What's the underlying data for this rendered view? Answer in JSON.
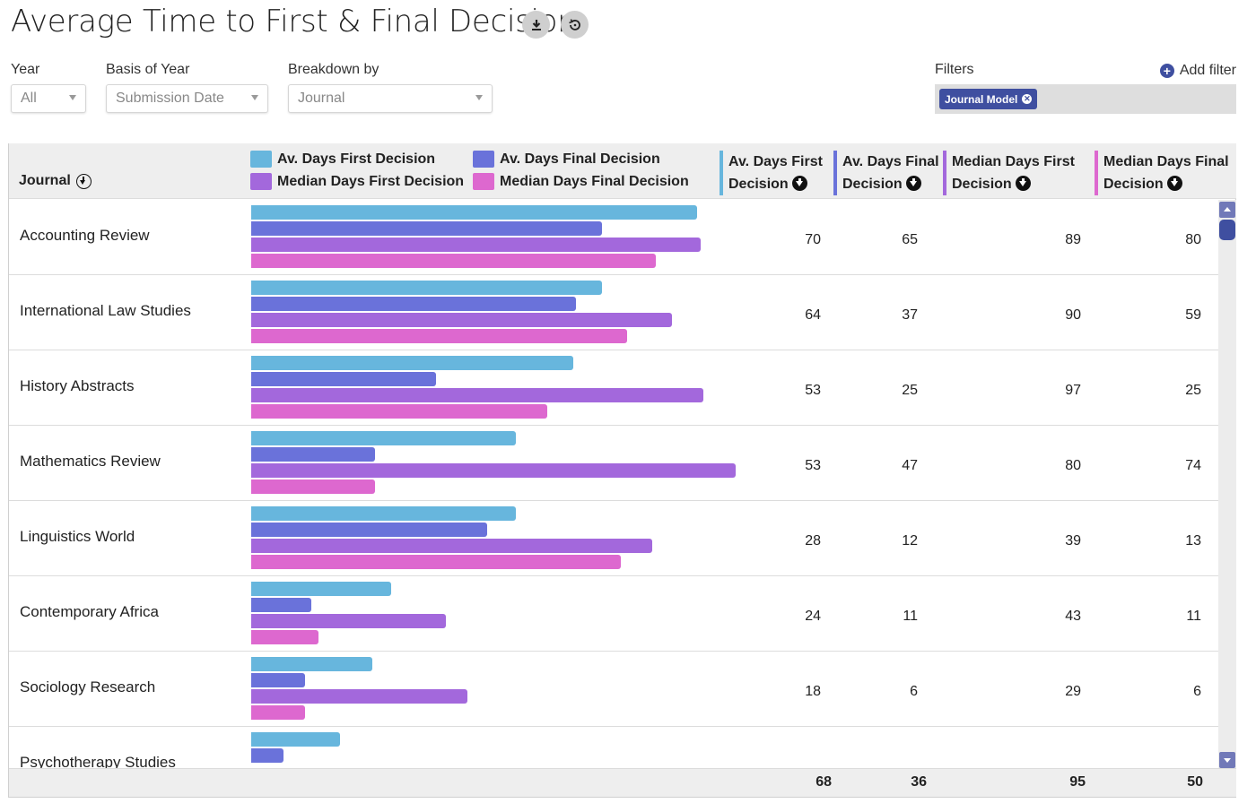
{
  "header": {
    "title": "Average Time to First & Final Decision",
    "download_icon": "download-icon",
    "reset_icon": "reset-icon"
  },
  "controls": {
    "year": {
      "label": "Year",
      "value": "All"
    },
    "basis": {
      "label": "Basis of Year",
      "value": "Submission Date"
    },
    "breakdown": {
      "label": "Breakdown by",
      "value": "Journal"
    }
  },
  "filters": {
    "label": "Filters",
    "add_label": "Add filter",
    "chips": [
      {
        "label": "Journal Model"
      }
    ]
  },
  "colors": {
    "av_first": "#67b6dd",
    "av_final": "#6a72da",
    "median_first": "#a368dc",
    "median_final": "#dd68cf"
  },
  "table": {
    "journal_header": "Journal",
    "columns": [
      {
        "key": "av_first",
        "line1": "Av. Days First",
        "line2": "Decision"
      },
      {
        "key": "av_final",
        "line1": "Av. Days Final",
        "line2": "Decision"
      },
      {
        "key": "median_first",
        "line1": "Median Days First",
        "line2": "Decision"
      },
      {
        "key": "median_final",
        "line1": "Median Days Final",
        "line2": "Decision"
      }
    ],
    "totals": {
      "av_first": "68",
      "av_final": "36",
      "median_first": "95",
      "median_final": "50"
    }
  },
  "chart_data": {
    "type": "bar",
    "orientation": "horizontal-grouped",
    "title": "Average Time to First & Final Decision",
    "legend": [
      "Av. Days First Decision",
      "Av. Days Final Decision",
      "Median Days First Decision",
      "Median Days Final Decision"
    ],
    "legend_position": "top",
    "categories": [
      "Accounting Review",
      "International Law Studies",
      "History Abstracts",
      "Mathematics Review",
      "Linguistics World",
      "Contemporary Africa",
      "Sociology Research",
      "Psychotherapy Studies"
    ],
    "series": [
      {
        "name": "Av. Days First Decision",
        "key": "av_first",
        "values": [
          70,
          64,
          53,
          53,
          28,
          24,
          18,
          null
        ]
      },
      {
        "name": "Av. Days Final Decision",
        "key": "av_final",
        "values": [
          65,
          37,
          25,
          47,
          12,
          11,
          6,
          null
        ]
      },
      {
        "name": "Median Days First Decision",
        "key": "median_first",
        "values": [
          89,
          90,
          97,
          80,
          39,
          43,
          29,
          null
        ]
      },
      {
        "name": "Median Days Final Decision",
        "key": "median_final",
        "values": [
          80,
          59,
          25,
          74,
          13,
          11,
          6,
          null
        ]
      }
    ],
    "bar_lengths_days": [
      [
        70,
        55,
        70.5,
        63.5
      ],
      [
        55,
        51,
        66,
        59
      ],
      [
        50.5,
        29,
        71,
        46.5
      ],
      [
        41.5,
        19.5,
        76,
        19.5
      ],
      [
        41.5,
        37,
        63,
        58
      ],
      [
        22,
        9.5,
        30.5,
        10.5
      ],
      [
        19,
        8.5,
        34,
        8.5
      ],
      [
        14,
        5,
        null,
        null
      ]
    ]
  }
}
